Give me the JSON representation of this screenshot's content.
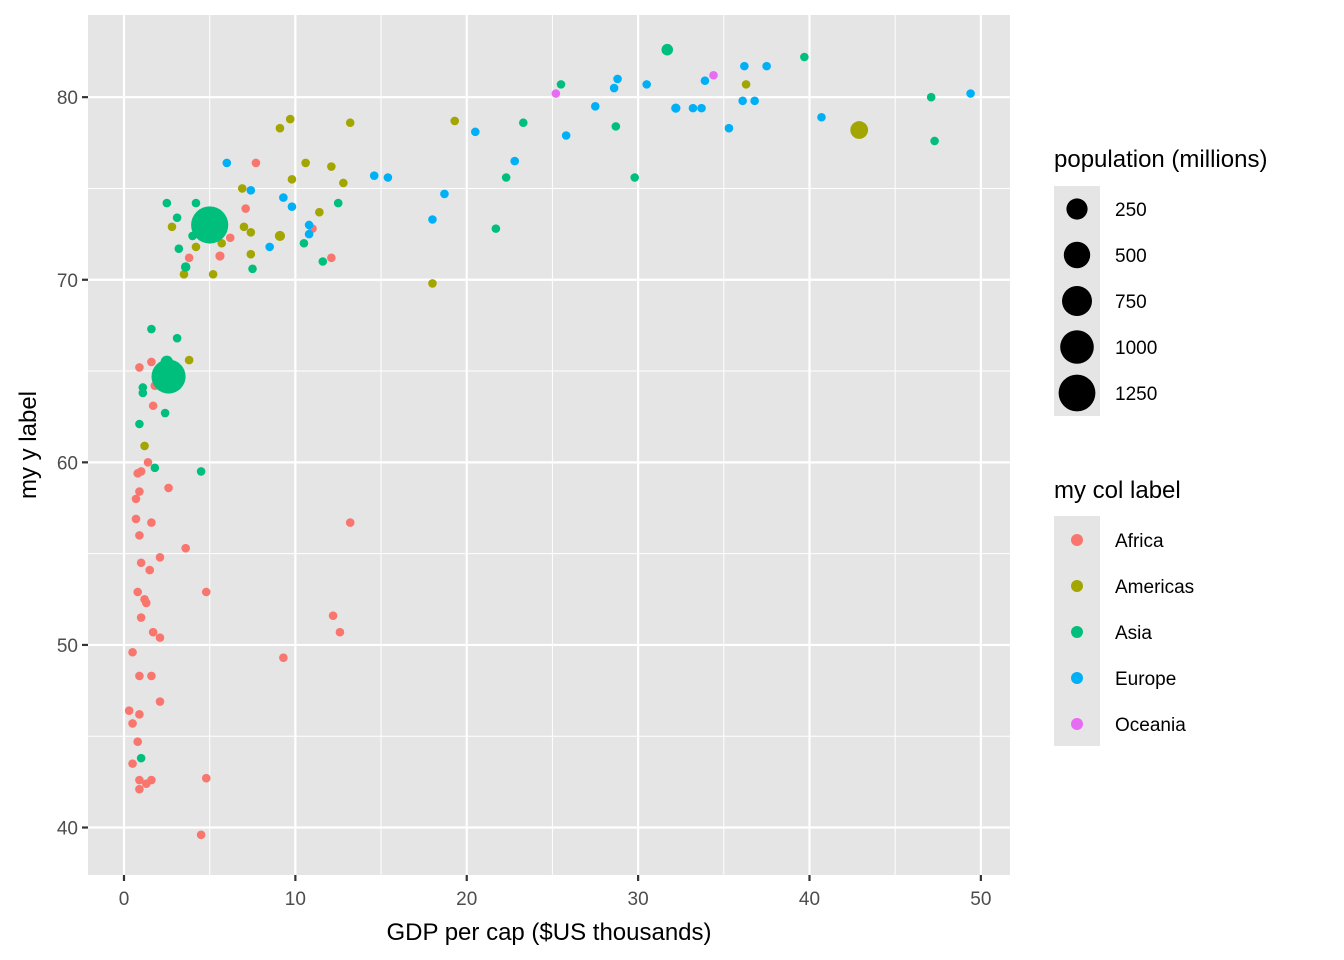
{
  "chart_data": {
    "type": "scatter",
    "title": "",
    "xlabel": "GDP per cap ($US thousands)",
    "ylabel": "my y label",
    "xlim": [
      -2.1,
      51.7
    ],
    "ylim": [
      37.4,
      84.5
    ],
    "x_ticks": [
      0,
      10,
      20,
      30,
      40,
      50
    ],
    "x_tick_labels": [
      "0",
      "10",
      "20",
      "30",
      "40",
      "50"
    ],
    "y_ticks": [
      40,
      50,
      60,
      70,
      80
    ],
    "y_tick_labels": [
      "40",
      "50",
      "60",
      "70",
      "80"
    ],
    "grid": true,
    "colors": {
      "panel": "#e5e5e5",
      "grid": "#ffffff",
      "Africa": "#F8766D",
      "Americas": "#A3A500",
      "Asia": "#00BF7D",
      "Europe": "#00B0F6",
      "Oceania": "#E76BF3"
    },
    "legend_size": {
      "title": "population (millions)",
      "placement": "right",
      "breaks": [
        250,
        500,
        750,
        1000,
        1250
      ],
      "labels": [
        "250",
        "500",
        "750",
        "1000",
        "1250"
      ]
    },
    "legend_color": {
      "title": "my col label",
      "placement": "right",
      "entries": [
        "Africa",
        "Americas",
        "Asia",
        "Europe",
        "Oceania"
      ]
    },
    "series": [
      {
        "name": "Africa",
        "points": [
          [
            7.7,
            76.4,
            4
          ],
          [
            7.1,
            73.9,
            10
          ],
          [
            6.2,
            72.3,
            10
          ],
          [
            12.1,
            71.2,
            4
          ],
          [
            11.0,
            72.8,
            3
          ],
          [
            3.8,
            71.2,
            33
          ],
          [
            5.6,
            71.3,
            80
          ],
          [
            1.6,
            65.5,
            4
          ],
          [
            0.9,
            65.2,
            2
          ],
          [
            1.8,
            64.2,
            10
          ],
          [
            1.7,
            63.1,
            12
          ],
          [
            1.4,
            60.0,
            20
          ],
          [
            2.6,
            58.6,
            24
          ],
          [
            0.8,
            59.4,
            14
          ],
          [
            1.0,
            59.5,
            12
          ],
          [
            0.9,
            58.4,
            12
          ],
          [
            0.7,
            58.0,
            8
          ],
          [
            1.6,
            56.7,
            12
          ],
          [
            0.7,
            56.9,
            12
          ],
          [
            0.9,
            56.0,
            10
          ],
          [
            3.6,
            55.3,
            12
          ],
          [
            2.1,
            54.8,
            4
          ],
          [
            1.0,
            54.5,
            12
          ],
          [
            1.5,
            54.1,
            25
          ],
          [
            0.8,
            52.9,
            30
          ],
          [
            1.2,
            52.5,
            22
          ],
          [
            1.3,
            52.3,
            24
          ],
          [
            4.8,
            52.9,
            8
          ],
          [
            13.2,
            56.7,
            4
          ],
          [
            12.2,
            51.6,
            4
          ],
          [
            12.6,
            50.7,
            6
          ],
          [
            1.0,
            51.5,
            20
          ],
          [
            1.7,
            50.7,
            14
          ],
          [
            2.1,
            50.4,
            28
          ],
          [
            9.3,
            49.3,
            45
          ],
          [
            0.5,
            49.6,
            10
          ],
          [
            0.9,
            48.3,
            18
          ],
          [
            1.6,
            48.3,
            18
          ],
          [
            2.1,
            46.9,
            70
          ],
          [
            0.3,
            46.4,
            38
          ],
          [
            0.9,
            46.2,
            20
          ],
          [
            0.5,
            45.7,
            10
          ],
          [
            0.8,
            44.7,
            10
          ],
          [
            0.5,
            43.5,
            10
          ],
          [
            0.9,
            42.6,
            12
          ],
          [
            1.3,
            42.4,
            12
          ],
          [
            1.6,
            42.6,
            8
          ],
          [
            0.9,
            42.1,
            20
          ],
          [
            4.8,
            42.7,
            10
          ],
          [
            4.5,
            39.6,
            8
          ]
        ]
      },
      {
        "name": "Americas",
        "points": [
          [
            9.1,
            78.3,
            10
          ],
          [
            9.7,
            78.8,
            5
          ],
          [
            13.2,
            78.6,
            10
          ],
          [
            6.9,
            75.0,
            12
          ],
          [
            10.6,
            76.4,
            8
          ],
          [
            9.8,
            75.5,
            6
          ],
          [
            12.1,
            76.2,
            40
          ],
          [
            12.8,
            75.3,
            28
          ],
          [
            11.4,
            73.7,
            20
          ],
          [
            7.0,
            72.9,
            20
          ],
          [
            7.4,
            72.6,
            8
          ],
          [
            2.8,
            72.9,
            8
          ],
          [
            4.2,
            71.8,
            8
          ],
          [
            5.7,
            72.0,
            10
          ],
          [
            9.1,
            72.4,
            100
          ],
          [
            7.4,
            71.4,
            18
          ],
          [
            3.5,
            70.3,
            10
          ],
          [
            5.2,
            70.3,
            10
          ],
          [
            19.3,
            78.7,
            6
          ],
          [
            18.0,
            69.8,
            4
          ],
          [
            36.3,
            80.7,
            33
          ],
          [
            42.9,
            78.2,
            301
          ],
          [
            3.8,
            65.6,
            10
          ],
          [
            1.2,
            60.9,
            9
          ]
        ]
      },
      {
        "name": "Asia",
        "points": [
          [
            2.5,
            74.2,
            30
          ],
          [
            3.1,
            73.4,
            6
          ],
          [
            4.2,
            74.2,
            10
          ],
          [
            5.0,
            73.0,
            1319
          ],
          [
            4.0,
            72.4,
            20
          ],
          [
            3.2,
            71.7,
            40
          ],
          [
            3.6,
            70.7,
            86
          ],
          [
            7.5,
            70.6,
            30
          ],
          [
            10.5,
            72.0,
            6
          ],
          [
            11.6,
            71.0,
            27
          ],
          [
            12.5,
            74.2,
            20
          ],
          [
            2.5,
            65.5,
            150
          ],
          [
            2.6,
            64.7,
            1110
          ],
          [
            1.1,
            64.1,
            60
          ],
          [
            1.1,
            63.8,
            28
          ],
          [
            1.6,
            67.3,
            20
          ],
          [
            3.1,
            66.8,
            5
          ],
          [
            2.4,
            62.7,
            22
          ],
          [
            0.9,
            62.1,
            25
          ],
          [
            1.8,
            59.7,
            12
          ],
          [
            4.5,
            59.5,
            20
          ],
          [
            1.0,
            43.8,
            25
          ],
          [
            31.7,
            82.6,
            127
          ],
          [
            25.5,
            80.7,
            7
          ],
          [
            39.7,
            82.2,
            4
          ],
          [
            28.7,
            78.4,
            23
          ],
          [
            23.3,
            78.6,
            49
          ],
          [
            22.3,
            75.6,
            6
          ],
          [
            29.8,
            75.6,
            3
          ],
          [
            21.7,
            72.8,
            24
          ],
          [
            47.1,
            80.0,
            4
          ],
          [
            47.3,
            77.6,
            4
          ]
        ]
      },
      {
        "name": "Europe",
        "points": [
          [
            6.0,
            76.4,
            4
          ],
          [
            7.4,
            74.9,
            4
          ],
          [
            9.3,
            74.5,
            4
          ],
          [
            9.8,
            74.0,
            10
          ],
          [
            14.6,
            75.7,
            10
          ],
          [
            15.4,
            75.6,
            38
          ],
          [
            10.8,
            73.0,
            10
          ],
          [
            10.8,
            72.5,
            22
          ],
          [
            8.5,
            71.8,
            39
          ],
          [
            18.0,
            73.3,
            10
          ],
          [
            18.7,
            74.7,
            10
          ],
          [
            22.8,
            76.5,
            10
          ],
          [
            20.5,
            78.1,
            10
          ],
          [
            25.8,
            77.9,
            5
          ],
          [
            27.5,
            79.5,
            10
          ],
          [
            28.6,
            80.5,
            40
          ],
          [
            28.8,
            81.0,
            46
          ],
          [
            30.5,
            80.7,
            60
          ],
          [
            32.2,
            79.4,
            82
          ],
          [
            33.2,
            79.4,
            61
          ],
          [
            33.7,
            79.4,
            10
          ],
          [
            33.9,
            80.9,
            10
          ],
          [
            35.3,
            78.3,
            10
          ],
          [
            36.1,
            79.8,
            10
          ],
          [
            36.8,
            79.8,
            10
          ],
          [
            36.2,
            81.7,
            1
          ],
          [
            37.5,
            81.7,
            10
          ],
          [
            40.7,
            78.9,
            4
          ],
          [
            49.4,
            80.2,
            4
          ]
        ]
      },
      {
        "name": "Oceania",
        "points": [
          [
            25.2,
            80.2,
            4
          ],
          [
            34.4,
            81.2,
            20
          ]
        ]
      }
    ]
  }
}
